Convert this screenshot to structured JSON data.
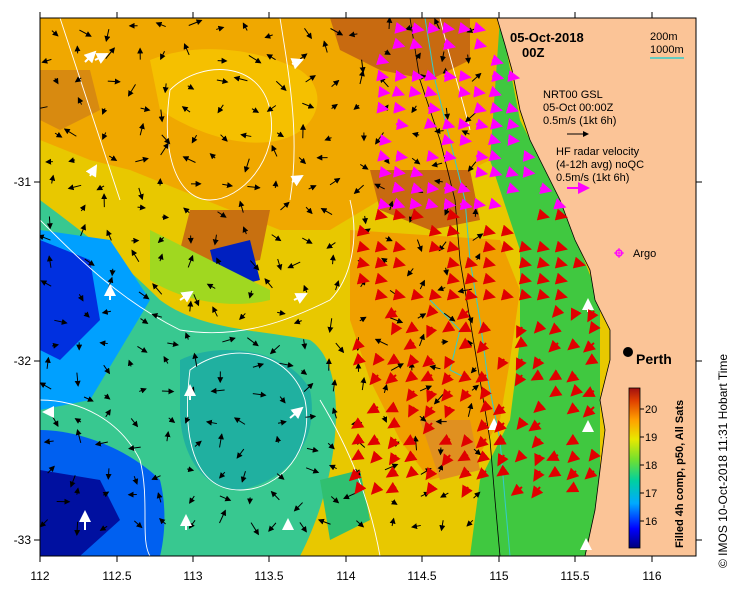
{
  "map": {
    "date": "05-Oct-2018",
    "time": "00Z",
    "x_ticks": [
      "112",
      "112.5",
      "113",
      "113.5",
      "114",
      "114.5",
      "115",
      "115.5",
      "116"
    ],
    "y_ticks": [
      "-31",
      "-32",
      "-33"
    ],
    "contour_legend": {
      "line1": "200m",
      "line2": "1000m"
    },
    "gsl_legend": {
      "line1": "NRT00 GSL",
      "line2": "05-Oct 00:00Z",
      "line3": "0.5m/s (1kt 6h)"
    },
    "radar_legend": {
      "line1": "HF radar velocity",
      "line2": "(4-12h avg) noQC",
      "line3": "0.5m/s (1kt 6h)"
    },
    "argo_label": "Argo",
    "city_label": "Perth",
    "colorbar": {
      "ticks": [
        "16",
        "17",
        "18",
        "19",
        "20"
      ],
      "title": "Filled 4h comp, p50, All Sats"
    },
    "credit": "© IMOS 10-Oct-2018 11:31 Hobart Time",
    "colors": {
      "land": "#fbc497",
      "gsl_arrow": "#000000",
      "radar_arrow_offshore": "#ff00ff",
      "radar_arrow_coastal": "#ff0000",
      "contour_200m": "#000000",
      "contour_1000m": "#33cccc",
      "argo": "#ff00ff"
    }
  }
}
